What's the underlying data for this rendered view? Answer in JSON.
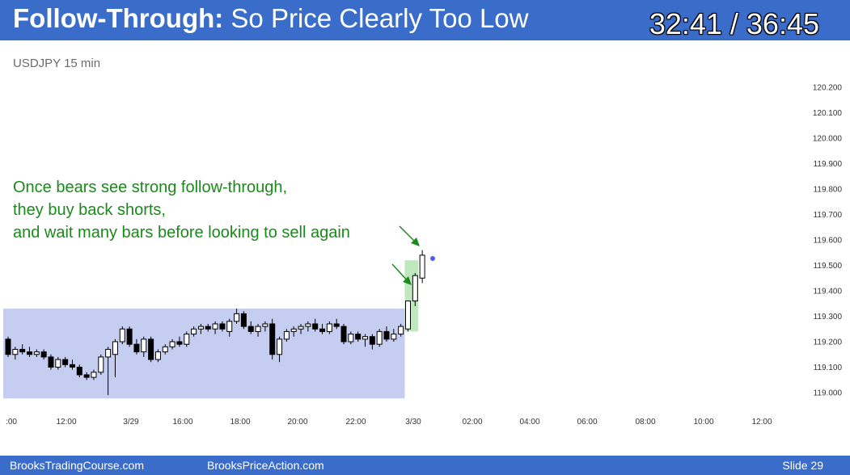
{
  "header": {
    "title_bold": "Follow-Through:",
    "title_rest": " So Price Clearly Too Low",
    "timer": "32:41 / 36:45"
  },
  "footer": {
    "left": "BrooksTradingCourse.com",
    "center": "BrooksPriceAction.com",
    "slide": "Slide  29"
  },
  "colors": {
    "header": "#3a6cc9",
    "range_box": "#c5cdf0",
    "breakout_box": "#bfe8bf",
    "annotation": "#1a8a1a"
  },
  "chart_data": {
    "type": "candlestick",
    "symbol": "USDJPY 15 min",
    "y_ticks": [
      "119.000",
      "119.100",
      "119.200",
      "119.300",
      "119.400",
      "119.500",
      "119.600",
      "119.700",
      "119.800",
      "119.900",
      "120.000",
      "120.100",
      "120.200"
    ],
    "ylim": [
      119.0,
      120.2
    ],
    "x_ticks": [
      ":00",
      "12:00",
      "3/29",
      "16:00",
      "18:00",
      "20:00",
      "22:00",
      "3/30",
      "02:00",
      "04:00",
      "06:00",
      "08:00",
      "10:00",
      "12:00"
    ],
    "annotation_lines": [
      "Once bears see strong follow-through,",
      "they buy back shorts,",
      "and wait many bars before looking to sell again"
    ],
    "trading_range": {
      "bar_start": 0,
      "bar_end": 56,
      "low": 118.99,
      "high": 119.33
    },
    "breakout_zone": {
      "bar_start": 56,
      "bar_end": 58,
      "low": 119.24,
      "high": 119.52
    },
    "candles": [
      [
        119.21,
        119.22,
        119.14,
        119.15
      ],
      [
        119.15,
        119.18,
        119.13,
        119.17
      ],
      [
        119.17,
        119.19,
        119.15,
        119.16
      ],
      [
        119.16,
        119.18,
        119.14,
        119.15
      ],
      [
        119.15,
        119.17,
        119.14,
        119.16
      ],
      [
        119.16,
        119.17,
        119.13,
        119.14
      ],
      [
        119.14,
        119.15,
        119.09,
        119.1
      ],
      [
        119.1,
        119.14,
        119.09,
        119.13
      ],
      [
        119.13,
        119.14,
        119.1,
        119.11
      ],
      [
        119.11,
        119.13,
        119.09,
        119.1
      ],
      [
        119.1,
        119.11,
        119.06,
        119.07
      ],
      [
        119.07,
        119.08,
        119.05,
        119.06
      ],
      [
        119.06,
        119.09,
        119.05,
        119.08
      ],
      [
        119.08,
        119.15,
        119.07,
        119.14
      ],
      [
        119.14,
        119.18,
        118.99,
        119.17
      ],
      [
        119.15,
        119.21,
        119.06,
        119.2
      ],
      [
        119.2,
        119.26,
        119.19,
        119.25
      ],
      [
        119.25,
        119.26,
        119.18,
        119.19
      ],
      [
        119.19,
        119.21,
        119.15,
        119.16
      ],
      [
        119.16,
        119.22,
        119.14,
        119.21
      ],
      [
        119.21,
        119.22,
        119.12,
        119.13
      ],
      [
        119.13,
        119.17,
        119.12,
        119.16
      ],
      [
        119.16,
        119.19,
        119.15,
        119.18
      ],
      [
        119.18,
        119.21,
        119.17,
        119.2
      ],
      [
        119.2,
        119.22,
        119.18,
        119.19
      ],
      [
        119.19,
        119.24,
        119.18,
        119.23
      ],
      [
        119.23,
        119.26,
        119.22,
        119.25
      ],
      [
        119.25,
        119.27,
        119.23,
        119.26
      ],
      [
        119.26,
        119.27,
        119.24,
        119.25
      ],
      [
        119.25,
        119.28,
        119.23,
        119.27
      ],
      [
        119.27,
        119.28,
        119.24,
        119.25
      ],
      [
        119.24,
        119.29,
        119.22,
        119.28
      ],
      [
        119.28,
        119.33,
        119.27,
        119.31
      ],
      [
        119.31,
        119.32,
        119.25,
        119.26
      ],
      [
        119.26,
        119.28,
        119.23,
        119.24
      ],
      [
        119.24,
        119.27,
        119.22,
        119.26
      ],
      [
        119.26,
        119.28,
        119.24,
        119.27
      ],
      [
        119.27,
        119.29,
        119.13,
        119.15
      ],
      [
        119.15,
        119.22,
        119.12,
        119.21
      ],
      [
        119.21,
        119.25,
        119.2,
        119.24
      ],
      [
        119.24,
        119.26,
        119.22,
        119.25
      ],
      [
        119.25,
        119.27,
        119.23,
        119.26
      ],
      [
        119.26,
        119.28,
        119.24,
        119.27
      ],
      [
        119.27,
        119.29,
        119.24,
        119.25
      ],
      [
        119.25,
        119.27,
        119.23,
        119.24
      ],
      [
        119.24,
        119.28,
        119.23,
        119.27
      ],
      [
        119.27,
        119.29,
        119.25,
        119.26
      ],
      [
        119.26,
        119.27,
        119.19,
        119.2
      ],
      [
        119.2,
        119.24,
        119.19,
        119.23
      ],
      [
        119.23,
        119.24,
        119.2,
        119.21
      ],
      [
        119.21,
        119.23,
        119.18,
        119.22
      ],
      [
        119.22,
        119.23,
        119.17,
        119.19
      ],
      [
        119.19,
        119.25,
        119.18,
        119.24
      ],
      [
        119.24,
        119.26,
        119.2,
        119.21
      ],
      [
        119.21,
        119.25,
        119.2,
        119.23
      ],
      [
        119.23,
        119.27,
        119.22,
        119.26
      ],
      [
        119.25,
        119.36,
        119.24,
        119.36
      ],
      [
        119.36,
        119.47,
        119.34,
        119.46
      ],
      [
        119.45,
        119.56,
        119.43,
        119.54
      ]
    ]
  }
}
